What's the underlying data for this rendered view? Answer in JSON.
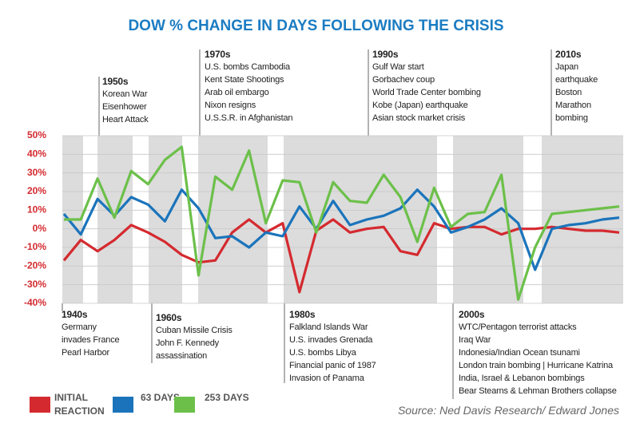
{
  "chart_data": {
    "type": "line",
    "title": "DOW % CHANGE IN DAYS FOLLOWING THE CRISIS",
    "source": "Source: Ned Davis Research/ Edward Jones",
    "categories": [
      null,
      null,
      null,
      null,
      null,
      null,
      null,
      null,
      null,
      null,
      null,
      null,
      null,
      null,
      null,
      null,
      null,
      null,
      null,
      null,
      null,
      null,
      null,
      null,
      null,
      null,
      null,
      null,
      null,
      null,
      null,
      null,
      null,
      null
    ],
    "series": [
      {
        "name": "INITIAL REACTION",
        "color": "#d42a2f",
        "values": [
          -17,
          -6,
          -12,
          -6,
          2,
          -2,
          -7,
          -14,
          -18,
          -17,
          -2,
          5,
          -2,
          3,
          -34,
          -1,
          5,
          -2,
          0,
          1,
          -12,
          -14,
          3,
          0,
          1,
          1,
          -3,
          0,
          0,
          1,
          0,
          -1,
          -1,
          -2
        ]
      },
      {
        "name": "63 DAYS",
        "color": "#1b74bb",
        "values": [
          8,
          -3,
          16,
          7,
          17,
          13,
          4,
          21,
          11,
          -5,
          -4,
          -10,
          -2,
          -4,
          12,
          0,
          15,
          2,
          5,
          7,
          11,
          21,
          12,
          -2,
          1,
          5,
          11,
          3,
          -22,
          0,
          2,
          3,
          5,
          6
        ]
      },
      {
        "name": "253 DAYS",
        "color": "#6cc04a",
        "values": [
          5,
          5,
          27,
          6,
          31,
          24,
          37,
          44,
          -25,
          28,
          21,
          42,
          3,
          26,
          25,
          -2,
          25,
          15,
          14,
          29,
          17,
          -7,
          22,
          1,
          8,
          9,
          29,
          -38,
          -10,
          8,
          9,
          10,
          11,
          12
        ]
      }
    ],
    "ylim": [
      -40,
      50
    ],
    "yticks": [
      {
        "value": 50,
        "label": "50%"
      },
      {
        "value": 40,
        "label": "40%"
      },
      {
        "value": 30,
        "label": "30%"
      },
      {
        "value": 20,
        "label": "20%"
      },
      {
        "value": 10,
        "label": "10%"
      },
      {
        "value": 0,
        "label": "0%"
      },
      {
        "value": -10,
        "label": "-10%"
      },
      {
        "value": -20,
        "label": "-20%"
      },
      {
        "value": -30,
        "label": "-30%"
      },
      {
        "value": -40,
        "label": "-40%"
      }
    ],
    "grid": true,
    "annotations": [
      {
        "heading": "1940s",
        "lines": [
          "Germany",
          "invades France",
          "Pearl Harbor"
        ]
      },
      {
        "heading": "1950s",
        "lines": [
          "Korean War",
          "Eisenhower",
          "Heart Attack"
        ]
      },
      {
        "heading": "1960s",
        "lines": [
          "Cuban Missile Crisis",
          "John F. Kennedy",
          "assassination"
        ]
      },
      {
        "heading": "1970s",
        "lines": [
          "U.S. bombs Cambodia",
          "Kent State Shootings",
          "Arab oil embargo",
          "Nixon resigns",
          "U.S.S.R. in Afghanistan"
        ]
      },
      {
        "heading": "1980s",
        "lines": [
          "Falkland Islands War",
          "U.S. invades Grenada",
          "U.S. bombs Libya",
          "Financial panic of 1987",
          "Invasion of Panama"
        ]
      },
      {
        "heading": "1990s",
        "lines": [
          "Gulf War start",
          "Gorbachev coup",
          "World Trade Center bombing",
          "Kobe (Japan) earthquake",
          "Asian stock market crisis"
        ]
      },
      {
        "heading": "2000s",
        "lines": [
          "WTC/Pentagon terrorist attacks",
          "Iraq War",
          "Indonesia/Indian Ocean tsunami",
          "London train bombing | Hurricane Katrina",
          "India, Israel & Lebanon bombings",
          "Bear Stearns & Lehman Brothers collapse"
        ]
      },
      {
        "heading": "2010s",
        "lines": [
          "Japan",
          "earthquake",
          "Boston",
          "Marathon",
          "bombing"
        ]
      }
    ]
  }
}
